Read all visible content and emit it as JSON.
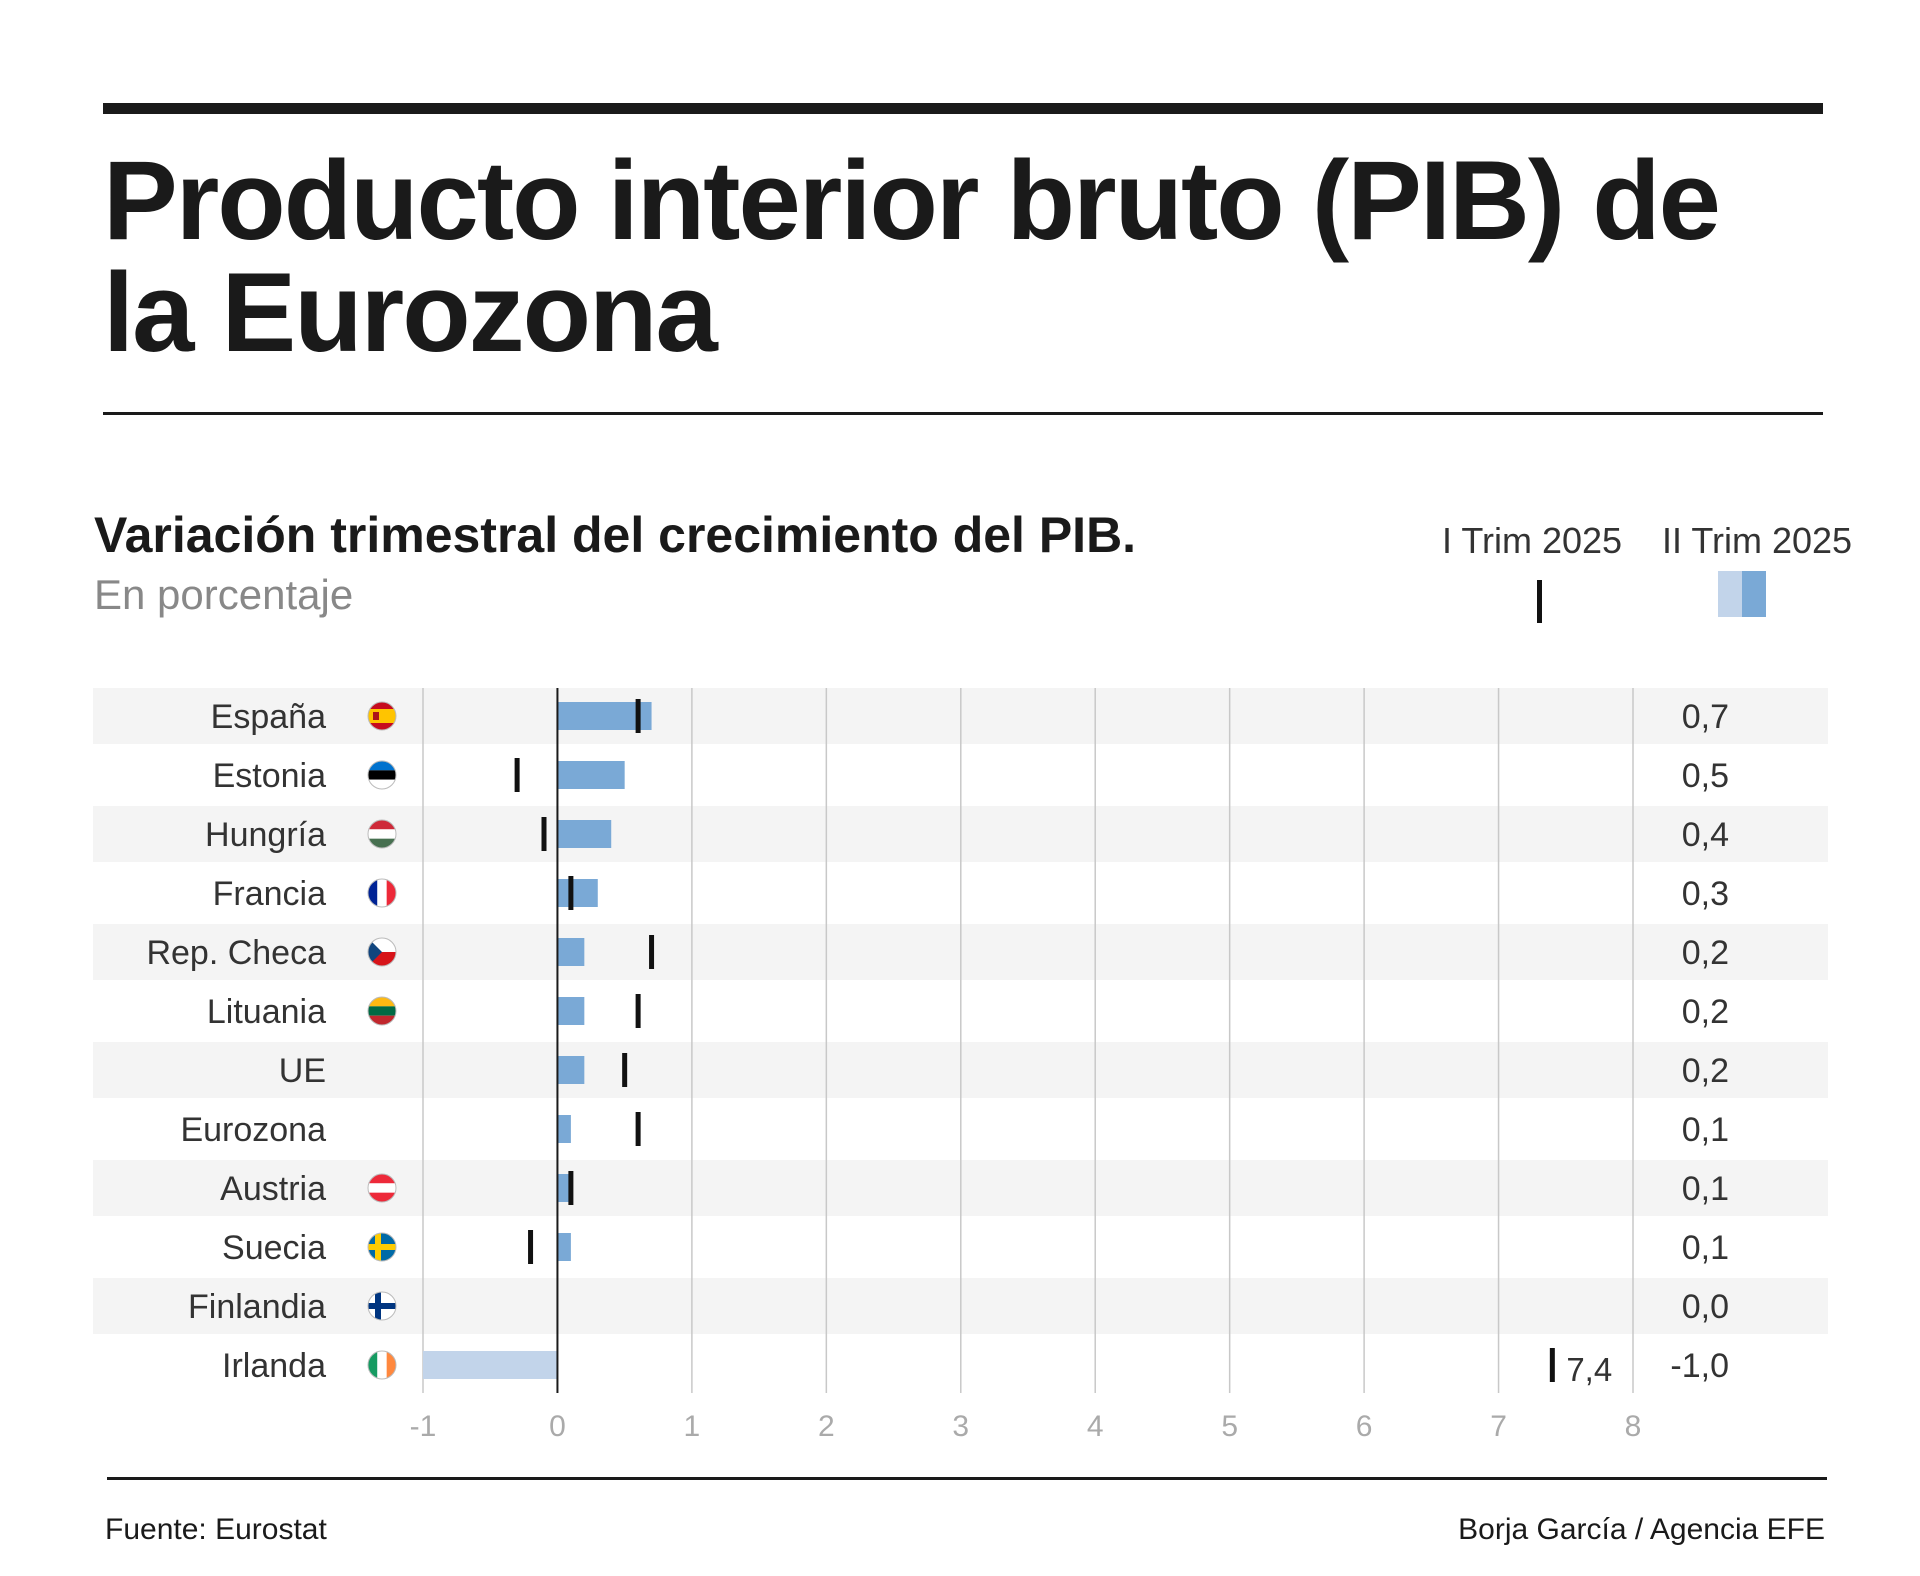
{
  "header": {
    "title": "Producto interior bruto (PIB) de la Eurozona",
    "subtitle": "Variación trimestral del crecimiento del PIB.",
    "unit": "En porcentaje"
  },
  "legend": {
    "prev_label": "I Trim 2025",
    "curr_label": "II Trim 2025"
  },
  "colors": {
    "bar_positive": "#7aa9d6",
    "bar_negative": "#c2d4ea",
    "marker": "#111111",
    "row_stripe": "#f4f4f4"
  },
  "chart_data": {
    "type": "bar",
    "orientation": "horizontal",
    "xlim": [
      -1,
      8
    ],
    "x_ticks": [
      "-1",
      "0",
      "1",
      "2",
      "3",
      "4",
      "5",
      "6",
      "7",
      "8"
    ],
    "grid": true,
    "legend_position": "top-right",
    "categories": [
      "España",
      "Estonia",
      "Hungría",
      "Francia",
      "Rep. Checa",
      "Lituania",
      "UE",
      "Eurozona",
      "Austria",
      "Suecia",
      "Finlandia",
      "Irlanda"
    ],
    "flags": [
      "spain-flag-icon",
      "estonia-flag-icon",
      "hungary-flag-icon",
      "france-flag-icon",
      "czechia-flag-icon",
      "lithuania-flag-icon",
      "",
      "",
      "austria-flag-icon",
      "sweden-flag-icon",
      "finland-flag-icon",
      "ireland-flag-icon"
    ],
    "series": [
      {
        "name": "II Trim 2025",
        "values": [
          0.7,
          0.5,
          0.4,
          0.3,
          0.2,
          0.2,
          0.2,
          0.1,
          0.1,
          0.1,
          0.0,
          -1.0
        ],
        "labels": [
          "0,7",
          "0,5",
          "0,4",
          "0,3",
          "0,2",
          "0,2",
          "0,2",
          "0,1",
          "0,1",
          "0,1",
          "0,0",
          "-1,0"
        ]
      },
      {
        "name": "I Trim 2025",
        "values": [
          0.6,
          -0.3,
          -0.1,
          0.1,
          0.7,
          0.6,
          0.5,
          0.6,
          0.1,
          -0.2,
          null,
          7.4
        ],
        "annotations": [
          null,
          null,
          null,
          null,
          null,
          null,
          null,
          null,
          null,
          null,
          null,
          "7,4"
        ]
      }
    ]
  },
  "footer": {
    "source": "Fuente: Eurostat",
    "credit": "Borja García / Agencia EFE"
  }
}
